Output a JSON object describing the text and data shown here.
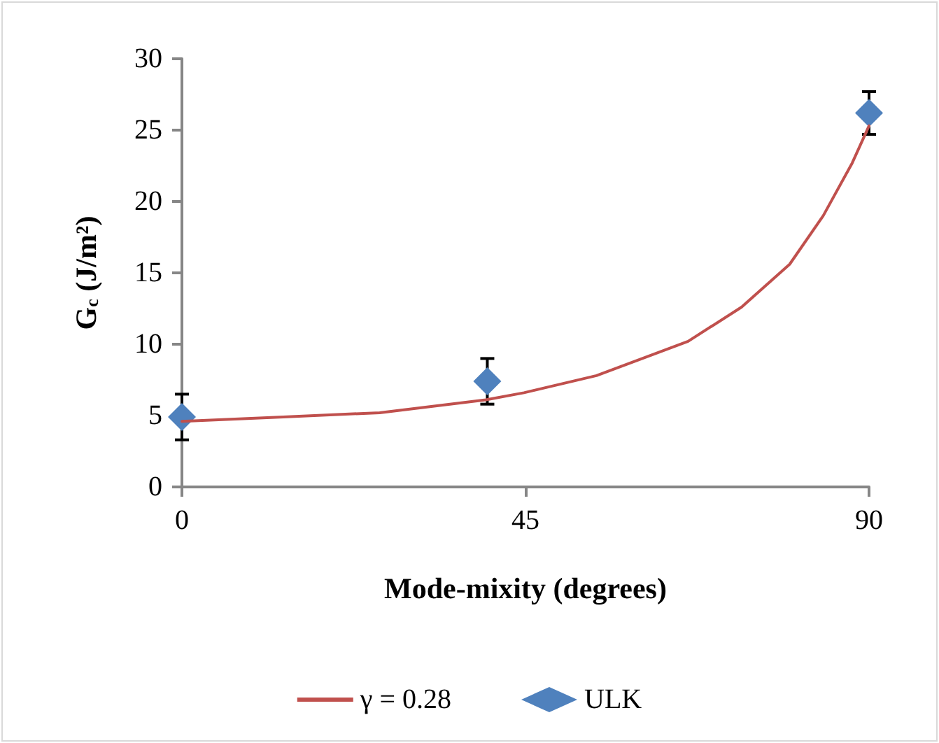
{
  "chart_data": {
    "type": "scatter",
    "xlabel": "Mode-mixity (degrees)",
    "ylabel": "G$_{c}$ (J/m²)",
    "xlim": [
      0,
      90
    ],
    "xticks": [
      0,
      45,
      90
    ],
    "ylim": [
      0,
      30
    ],
    "yticks": [
      0,
      5,
      10,
      15,
      20,
      25,
      30
    ],
    "grid": false,
    "legend": "bottom",
    "series": [
      {
        "name": "γ = 0.28",
        "type": "line",
        "marker": "none",
        "line_style": "solid",
        "color": "#c0504d",
        "x": [
          0,
          13.3,
          25.9,
          39.8,
          44.8,
          54.3,
          66.3,
          73.3,
          79.6,
          84.0,
          87.8,
          90
        ],
        "values": [
          4.6,
          4.9,
          5.2,
          6.1,
          6.6,
          7.8,
          10.2,
          12.6,
          15.6,
          19.0,
          22.7,
          25.3
        ]
      },
      {
        "name": "ULK",
        "marker": "diamond",
        "color": "#4f81bd",
        "x": [
          0,
          40,
          90
        ],
        "values": [
          4.9,
          7.4,
          26.2
        ],
        "errors": [
          1.6,
          1.6,
          1.5
        ]
      }
    ]
  }
}
